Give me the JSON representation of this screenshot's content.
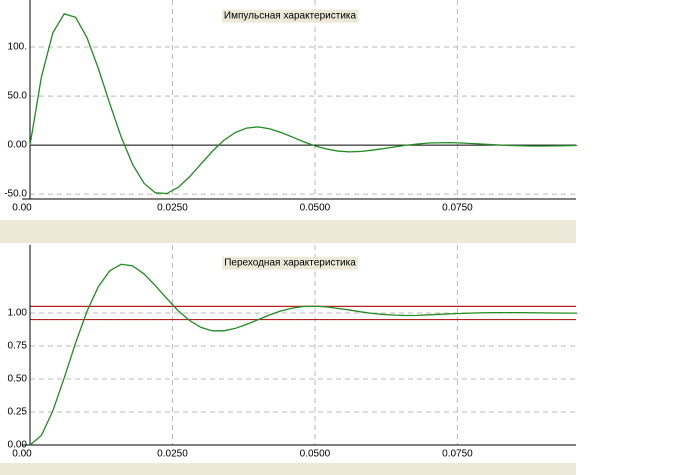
{
  "chart_data": [
    {
      "type": "line",
      "title": "Импульсная характеристика",
      "color": "#228b22",
      "grid": true,
      "x": [
        0,
        0.002,
        0.004,
        0.006,
        0.008,
        0.01,
        0.012,
        0.014,
        0.016,
        0.018,
        0.02,
        0.022,
        0.024,
        0.026,
        0.028,
        0.03,
        0.032,
        0.034,
        0.036,
        0.038,
        0.04,
        0.042,
        0.044,
        0.046,
        0.048,
        0.05,
        0.052,
        0.054,
        0.056,
        0.058,
        0.06,
        0.062,
        0.064,
        0.066,
        0.068,
        0.07,
        0.072,
        0.074,
        0.076,
        0.078,
        0.08,
        0.082,
        0.084,
        0.086,
        0.088,
        0.09,
        0.092,
        0.094,
        0.096
      ],
      "values": [
        0,
        69.4,
        114.4,
        133.9,
        130.4,
        109.6,
        78.0,
        42.2,
        8.2,
        -19.7,
        -38.9,
        -48.7,
        -49.4,
        -43.1,
        -32.3,
        -19.2,
        -6.3,
        4.8,
        12.8,
        17.3,
        18.6,
        16.7,
        13.0,
        8.3,
        3.4,
        -0.8,
        -4.0,
        -6.1,
        -6.9,
        -6.5,
        -5.2,
        -3.6,
        -1.8,
        -0.2,
        1.1,
        2.1,
        2.4,
        2.5,
        2.0,
        1.5,
        0.8,
        0.2,
        -0.4,
        -0.7,
        -0.9,
        -0.9,
        -0.8,
        -0.6,
        -0.4
      ],
      "xlim": [
        0,
        0.0958
      ],
      "ylim": [
        -55,
        148
      ],
      "xticks": [
        {
          "value": 0,
          "label": "0.00"
        },
        {
          "value": 0.025,
          "label": "0.0250"
        },
        {
          "value": 0.05,
          "label": "0.0500"
        },
        {
          "value": 0.075,
          "label": "0.0750"
        }
      ],
      "yticks": [
        {
          "value": -50,
          "label": "-50.0"
        },
        {
          "value": 0,
          "label": "0.00"
        },
        {
          "value": 50,
          "label": "50.0"
        },
        {
          "value": 100,
          "label": "100."
        }
      ]
    },
    {
      "type": "line",
      "title": "Переходная характеристика",
      "color": "#228b22",
      "grid": true,
      "x": [
        0,
        0.002,
        0.004,
        0.006,
        0.008,
        0.01,
        0.012,
        0.014,
        0.016,
        0.018,
        0.02,
        0.022,
        0.024,
        0.026,
        0.028,
        0.03,
        0.032,
        0.034,
        0.036,
        0.038,
        0.04,
        0.042,
        0.044,
        0.046,
        0.048,
        0.05,
        0.052,
        0.054,
        0.056,
        0.058,
        0.06,
        0.062,
        0.064,
        0.066,
        0.068,
        0.07,
        0.072,
        0.074,
        0.076,
        0.078,
        0.08,
        0.082,
        0.084,
        0.086,
        0.088,
        0.09,
        0.092,
        0.094,
        0.096
      ],
      "values": [
        0,
        0.072,
        0.258,
        0.508,
        0.773,
        1.013,
        1.2,
        1.32,
        1.369,
        1.357,
        1.296,
        1.207,
        1.11,
        1.017,
        0.943,
        0.891,
        0.865,
        0.865,
        0.883,
        0.914,
        0.949,
        0.985,
        1.015,
        1.037,
        1.049,
        1.051,
        1.046,
        1.035,
        1.023,
        1.009,
        0.997,
        0.989,
        0.984,
        0.981,
        0.982,
        0.986,
        0.99,
        0.994,
        0.997,
        1.0,
        1.002,
        1.003,
        1.003,
        1.003,
        1.002,
        1.001,
        1.0,
        0.999,
        0.999
      ],
      "xlim": [
        0,
        0.0958
      ],
      "ylim": [
        0,
        1.515
      ],
      "xticks": [
        {
          "value": 0,
          "label": "0.00"
        },
        {
          "value": 0.025,
          "label": "0.0250"
        },
        {
          "value": 0.05,
          "label": "0.0500"
        },
        {
          "value": 0.075,
          "label": "0.0750"
        }
      ],
      "yticks": [
        {
          "value": 0,
          "label": "0.00"
        },
        0.25,
        {
          "value": 0.5,
          "label": "0.50"
        },
        0.75,
        {
          "value": 1,
          "label": "1.00"
        }
      ],
      "reference_lines": [
        0.95,
        1.05
      ],
      "reference_color": "#b22222"
    }
  ]
}
